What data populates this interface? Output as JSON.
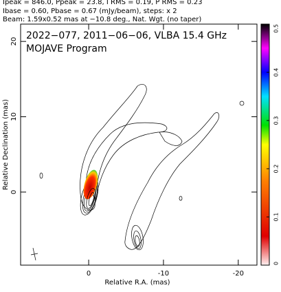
{
  "chart_data": {
    "type": "contour",
    "header_lines": [
      "Ipeak = 846.0, Ppeak = 23.8, I RMS = 0.19, P RMS = 0.23",
      "Ibase = 0.60, Pbase = 0.67 (mJy/beam), steps: x 2",
      "Beam: 1.59x0.52 mas at −10.8 deg., Nat. Wgt. (no taper)"
    ],
    "annotations": [
      "2022−077, 2011−06−06, VLBA 15.4 GHz",
      "MOJAVE Program"
    ],
    "x_label": "Relative R.A. (mas)",
    "y_label": "Relative Declination (mas)",
    "xlim": [
      9.1,
      -22.5
    ],
    "xticks": [
      0,
      -10,
      -20
    ],
    "ylim": [
      -9.7,
      22.3
    ],
    "yticks": [
      0,
      10,
      20
    ],
    "colorbar": {
      "lim": [
        0,
        0.5
      ],
      "ticks": [
        0,
        0.1,
        0.2,
        0.3,
        0.4,
        0.5
      ]
    }
  }
}
